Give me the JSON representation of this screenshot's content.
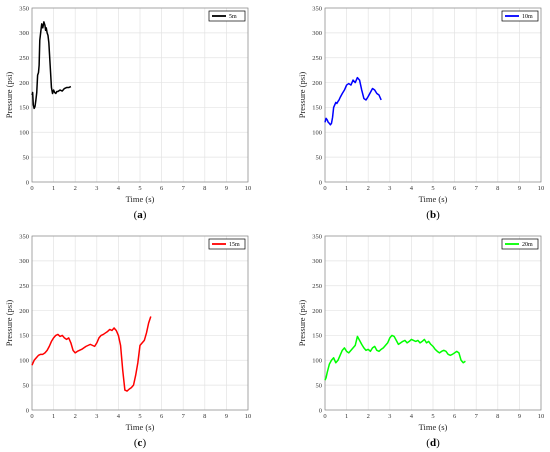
{
  "chart_data": [
    {
      "type": "line",
      "panel_label": [
        "(",
        "a",
        ")"
      ],
      "xlabel": "Time (s)",
      "ylabel": "Pressure (psi)",
      "xlim": [
        0,
        10
      ],
      "ylim": [
        0,
        350
      ],
      "xticks": [
        "0",
        "1",
        "2",
        "3",
        "4",
        "5",
        "6",
        "7",
        "8",
        "9",
        "10"
      ],
      "yticks": [
        "0",
        "50",
        "100",
        "150",
        "200",
        "250",
        "300",
        "350"
      ],
      "grid": true,
      "legend_position": "top-right",
      "series": [
        {
          "name": "5m",
          "color": "#000000",
          "x": [
            0.0,
            0.03,
            0.06,
            0.1,
            0.14,
            0.18,
            0.22,
            0.26,
            0.3,
            0.33,
            0.36,
            0.4,
            0.45,
            0.5,
            0.55,
            0.6,
            0.63,
            0.66,
            0.7,
            0.74,
            0.78,
            0.82,
            0.86,
            0.9,
            0.95,
            1.0,
            1.05,
            1.1,
            1.15,
            1.2,
            1.3,
            1.4,
            1.5,
            1.6,
            1.7,
            1.8
          ],
          "y": [
            175,
            180,
            155,
            148,
            152,
            165,
            180,
            215,
            220,
            235,
            285,
            300,
            318,
            310,
            322,
            315,
            305,
            310,
            300,
            295,
            280,
            250,
            220,
            190,
            178,
            185,
            180,
            178,
            182,
            182,
            185,
            183,
            188,
            190,
            190,
            192
          ]
        }
      ]
    },
    {
      "type": "line",
      "panel_label": [
        "(",
        "b",
        ")"
      ],
      "xlabel": "Time (s)",
      "ylabel": "Pressure (psi)",
      "xlim": [
        0,
        10
      ],
      "ylim": [
        0,
        350
      ],
      "xticks": [
        "0",
        "1",
        "2",
        "3",
        "4",
        "5",
        "6",
        "7",
        "8",
        "9",
        "10"
      ],
      "yticks": [
        "0",
        "50",
        "100",
        "150",
        "200",
        "250",
        "300",
        "350"
      ],
      "grid": true,
      "legend_position": "top-right",
      "series": [
        {
          "name": "10m",
          "color": "#0000ff",
          "x": [
            0.0,
            0.05,
            0.1,
            0.15,
            0.2,
            0.25,
            0.3,
            0.35,
            0.4,
            0.45,
            0.5,
            0.55,
            0.6,
            0.65,
            0.7,
            0.8,
            0.9,
            1.0,
            1.1,
            1.2,
            1.3,
            1.4,
            1.5,
            1.6,
            1.7,
            1.8,
            1.9,
            2.0,
            2.1,
            2.2,
            2.3,
            2.4,
            2.5,
            2.6
          ],
          "y": [
            120,
            128,
            125,
            120,
            118,
            115,
            118,
            130,
            150,
            155,
            160,
            158,
            162,
            165,
            170,
            178,
            185,
            195,
            198,
            195,
            205,
            200,
            210,
            205,
            185,
            168,
            165,
            172,
            180,
            188,
            185,
            178,
            175,
            165
          ]
        }
      ]
    },
    {
      "type": "line",
      "panel_label": [
        "(",
        "c",
        ")"
      ],
      "xlabel": "Time (s)",
      "ylabel": "Pressure (psi)",
      "xlim": [
        0,
        10
      ],
      "ylim": [
        0,
        350
      ],
      "xticks": [
        "0",
        "1",
        "2",
        "3",
        "4",
        "5",
        "6",
        "7",
        "8",
        "9",
        "10"
      ],
      "yticks": [
        "0",
        "50",
        "100",
        "150",
        "200",
        "250",
        "300",
        "350"
      ],
      "grid": true,
      "legend_position": "top-right",
      "series": [
        {
          "name": "15m",
          "color": "#ff0000",
          "x": [
            0.0,
            0.1,
            0.2,
            0.3,
            0.4,
            0.5,
            0.6,
            0.7,
            0.8,
            0.9,
            1.0,
            1.1,
            1.2,
            1.3,
            1.4,
            1.5,
            1.6,
            1.7,
            1.8,
            1.9,
            2.0,
            2.1,
            2.2,
            2.3,
            2.4,
            2.5,
            2.6,
            2.7,
            2.8,
            2.9,
            3.0,
            3.1,
            3.2,
            3.3,
            3.4,
            3.5,
            3.6,
            3.7,
            3.8,
            3.9,
            4.0,
            4.1,
            4.2,
            4.3,
            4.4,
            4.5,
            4.6,
            4.7,
            4.8,
            4.9,
            5.0,
            5.1,
            5.2,
            5.3,
            5.4,
            5.5
          ],
          "y": [
            90,
            100,
            105,
            110,
            112,
            112,
            115,
            120,
            128,
            138,
            145,
            150,
            152,
            148,
            150,
            145,
            142,
            145,
            135,
            120,
            115,
            118,
            120,
            122,
            125,
            128,
            130,
            132,
            130,
            128,
            135,
            145,
            150,
            152,
            155,
            158,
            162,
            160,
            165,
            160,
            150,
            130,
            80,
            40,
            38,
            42,
            45,
            50,
            70,
            95,
            130,
            135,
            140,
            155,
            175,
            188
          ]
        }
      ]
    },
    {
      "type": "line",
      "panel_label": [
        "(",
        "d",
        ")"
      ],
      "xlabel": "Time (s)",
      "ylabel": "Pressure (psi)",
      "xlim": [
        0,
        10
      ],
      "ylim": [
        0,
        350
      ],
      "xticks": [
        "0",
        "1",
        "2",
        "3",
        "4",
        "5",
        "6",
        "7",
        "8",
        "9",
        "10"
      ],
      "yticks": [
        "0",
        "50",
        "100",
        "150",
        "200",
        "250",
        "300",
        "350"
      ],
      "grid": true,
      "legend_position": "top-right",
      "series": [
        {
          "name": "20m",
          "color": "#00ff00",
          "x": [
            0.0,
            0.05,
            0.1,
            0.2,
            0.3,
            0.4,
            0.5,
            0.6,
            0.7,
            0.8,
            0.9,
            1.0,
            1.1,
            1.2,
            1.3,
            1.4,
            1.5,
            1.6,
            1.7,
            1.8,
            1.9,
            2.0,
            2.1,
            2.2,
            2.3,
            2.4,
            2.5,
            2.6,
            2.7,
            2.8,
            2.9,
            3.0,
            3.1,
            3.2,
            3.3,
            3.4,
            3.5,
            3.6,
            3.7,
            3.8,
            3.9,
            4.0,
            4.1,
            4.2,
            4.3,
            4.4,
            4.5,
            4.6,
            4.7,
            4.8,
            4.9,
            5.0,
            5.1,
            5.2,
            5.3,
            5.4,
            5.5,
            5.6,
            5.7,
            5.8,
            5.9,
            6.0,
            6.1,
            6.2,
            6.3,
            6.4,
            6.5
          ],
          "y": [
            60,
            65,
            75,
            92,
            100,
            105,
            95,
            100,
            110,
            120,
            125,
            118,
            115,
            120,
            125,
            130,
            148,
            140,
            132,
            125,
            120,
            122,
            118,
            125,
            128,
            120,
            118,
            122,
            125,
            130,
            135,
            145,
            150,
            148,
            140,
            132,
            135,
            138,
            140,
            135,
            138,
            142,
            140,
            138,
            140,
            135,
            138,
            142,
            135,
            138,
            132,
            128,
            122,
            118,
            115,
            118,
            120,
            118,
            112,
            110,
            112,
            115,
            118,
            115,
            100,
            95,
            98
          ]
        }
      ]
    }
  ]
}
